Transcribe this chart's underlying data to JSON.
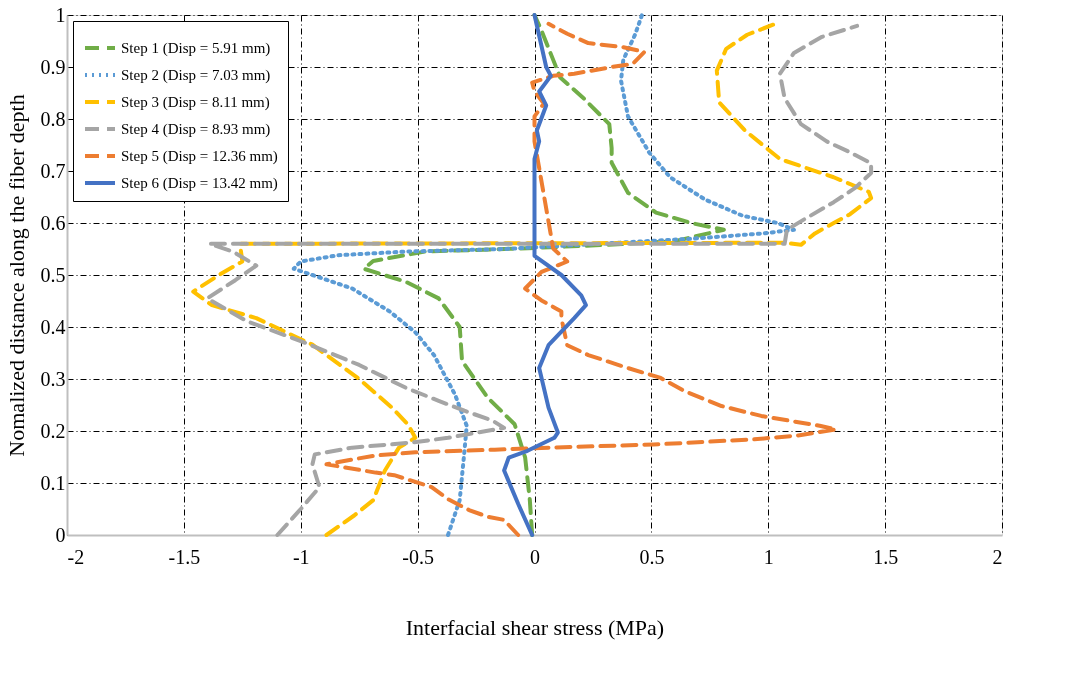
{
  "chart_data": {
    "type": "line",
    "xlabel": "Interfacial shear stress (MPa)",
    "ylabel": "Nomalized distance along the fiber depth",
    "xlim": [
      -2,
      2
    ],
    "xticks": [
      -2,
      -1.5,
      -1,
      -0.5,
      0,
      0.5,
      1,
      1.5,
      2
    ],
    "ylim": [
      0,
      1
    ],
    "yticks": [
      0,
      0.1,
      0.2,
      0.3,
      0.4,
      0.5,
      0.6,
      0.7,
      0.8,
      0.9,
      1
    ],
    "grid": true,
    "legend": "top left",
    "marker": "none",
    "series": [
      {
        "name": "Step 1 (Disp = 5.91 mm)",
        "color": "#70ad47",
        "line_style": "dashed",
        "x": [
          -0.01,
          -0.02,
          -0.04,
          -0.085,
          -0.2,
          -0.31,
          -0.32,
          -0.41,
          -0.55,
          -0.73,
          -0.69,
          -0.47,
          0,
          0.3,
          0.6,
          0.81,
          0.67,
          0.52,
          0.4,
          0.33,
          0.33,
          0.32,
          0.21,
          0.11,
          0.03,
          0.0
        ],
        "values": [
          0,
          0.067,
          0.149,
          0.213,
          0.264,
          0.335,
          0.4,
          0.455,
          0.487,
          0.512,
          0.527,
          0.545,
          0.552,
          0.558,
          0.565,
          0.587,
          0.6,
          0.62,
          0.658,
          0.716,
          0.744,
          0.79,
          0.84,
          0.88,
          0.97,
          1.0
        ]
      },
      {
        "name": "Step 2 (Disp = 7.03 mm)",
        "color": "#5b9bd5",
        "line_style": "dotted",
        "x": [
          -0.37,
          -0.32,
          -0.3,
          -0.29,
          -0.34,
          -0.43,
          -0.51,
          -0.62,
          -0.78,
          -0.95,
          -1.03,
          -1.0,
          -0.84,
          -0.55,
          -0.13,
          0.68,
          0.98,
          1.11,
          1.04,
          0.89,
          0.73,
          0.58,
          0.49,
          0.4,
          0.37,
          0.38,
          0.43,
          0.46
        ],
        "values": [
          0,
          0.067,
          0.16,
          0.21,
          0.27,
          0.346,
          0.39,
          0.43,
          0.474,
          0.5,
          0.512,
          0.526,
          0.538,
          0.545,
          0.55,
          0.57,
          0.58,
          0.587,
          0.6,
          0.614,
          0.645,
          0.688,
          0.736,
          0.805,
          0.874,
          0.914,
          0.962,
          1.0
        ]
      },
      {
        "name": "Step 3 (Disp = 8.11 mm)",
        "color": "#ffc000",
        "line_style": "dashed",
        "x": [
          -0.89,
          -0.77,
          -0.69,
          -0.64,
          -0.58,
          -0.51,
          -0.54,
          -0.61,
          -0.75,
          -0.95,
          -1.19,
          -1.38,
          -1.46,
          -1.35,
          -1.25,
          -1.26,
          1.07,
          1.14,
          1.2,
          1.28,
          1.35,
          1.44,
          1.43,
          1.28,
          1.05,
          0.9,
          0.79,
          0.78,
          0.82,
          0.91,
          1.03
        ],
        "values": [
          0,
          0.038,
          0.067,
          0.124,
          0.168,
          0.187,
          0.212,
          0.245,
          0.3,
          0.366,
          0.417,
          0.442,
          0.468,
          0.5,
          0.526,
          0.56,
          0.562,
          0.558,
          0.58,
          0.6,
          0.617,
          0.648,
          0.66,
          0.688,
          0.723,
          0.778,
          0.832,
          0.893,
          0.935,
          0.962,
          0.983
        ]
      },
      {
        "name": "Step 4 (Disp = 8.93 mm)",
        "color": "#a5a5a5",
        "line_style": "dashed",
        "x": [
          -1.1,
          -1.0,
          -0.92,
          -0.95,
          -0.94,
          -0.78,
          -0.52,
          -0.37,
          -0.13,
          -0.18,
          -0.3,
          -0.41,
          -0.55,
          -0.75,
          -1.0,
          -1.23,
          -1.4,
          -1.28,
          -1.19,
          -1.29,
          -1.39,
          1.07,
          1.08,
          1.15,
          1.28,
          1.37,
          1.44,
          1.44,
          1.35,
          1.25,
          1.14,
          1.07,
          1.05,
          1.11,
          1.23,
          1.38
        ],
        "values": [
          0,
          0.05,
          0.092,
          0.136,
          0.155,
          0.168,
          0.178,
          0.187,
          0.206,
          0.22,
          0.239,
          0.258,
          0.283,
          0.327,
          0.373,
          0.411,
          0.455,
          0.49,
          0.518,
          0.545,
          0.56,
          0.56,
          0.587,
          0.606,
          0.64,
          0.667,
          0.696,
          0.715,
          0.736,
          0.757,
          0.79,
          0.84,
          0.887,
          0.927,
          0.958,
          0.979
        ]
      },
      {
        "name": "Step 5 (Disp = 12.36 mm)",
        "color": "#ed7d31",
        "line_style": "dashed",
        "x": [
          -0.07,
          -0.13,
          -0.2,
          -0.28,
          -0.37,
          -0.44,
          -0.6,
          -0.68,
          -0.89,
          -0.78,
          -0.68,
          -0.51,
          -0.17,
          0.06,
          0.51,
          0.94,
          1.12,
          1.29,
          1.22,
          0.97,
          0.8,
          0.64,
          0.54,
          0.4,
          0.23,
          0.14,
          0.115,
          0.115,
          0.03,
          -0.04,
          0.03,
          0.14,
          0.08,
          0.0,
          0.0,
          0.04,
          0.0,
          -0.01,
          0.08,
          0.17,
          0.33,
          0.42,
          0.47,
          0.38,
          0.23,
          0.14,
          0.06
        ],
        "values": [
          0,
          0.029,
          0.035,
          0.048,
          0.069,
          0.092,
          0.115,
          0.12,
          0.136,
          0.145,
          0.153,
          0.159,
          0.164,
          0.168,
          0.174,
          0.184,
          0.191,
          0.203,
          0.21,
          0.229,
          0.248,
          0.277,
          0.302,
          0.321,
          0.346,
          0.365,
          0.417,
          0.43,
          0.451,
          0.474,
          0.506,
          0.526,
          0.551,
          0.757,
          0.805,
          0.83,
          0.853,
          0.87,
          0.883,
          0.887,
          0.9,
          0.906,
          0.929,
          0.938,
          0.946,
          0.964,
          0.983
        ]
      },
      {
        "name": "Step 6 (Disp = 13.42 mm)",
        "color": "#4472c4",
        "line_style": "solid",
        "x": [
          -0.01,
          -0.07,
          -0.13,
          -0.11,
          -0.03,
          0.085,
          0.1,
          0.06,
          0.02,
          0.06,
          0.17,
          0.22,
          0.2,
          0.115,
          0,
          0,
          0,
          0.02,
          0.01,
          0.05,
          0.02,
          0.07,
          0.05,
          0
        ],
        "values": [
          0,
          0.06,
          0.124,
          0.149,
          0.162,
          0.187,
          0.197,
          0.245,
          0.321,
          0.365,
          0.417,
          0.442,
          0.461,
          0.5,
          0.537,
          0.556,
          0.723,
          0.757,
          0.778,
          0.826,
          0.853,
          0.883,
          0.9,
          1.0
        ]
      }
    ]
  }
}
